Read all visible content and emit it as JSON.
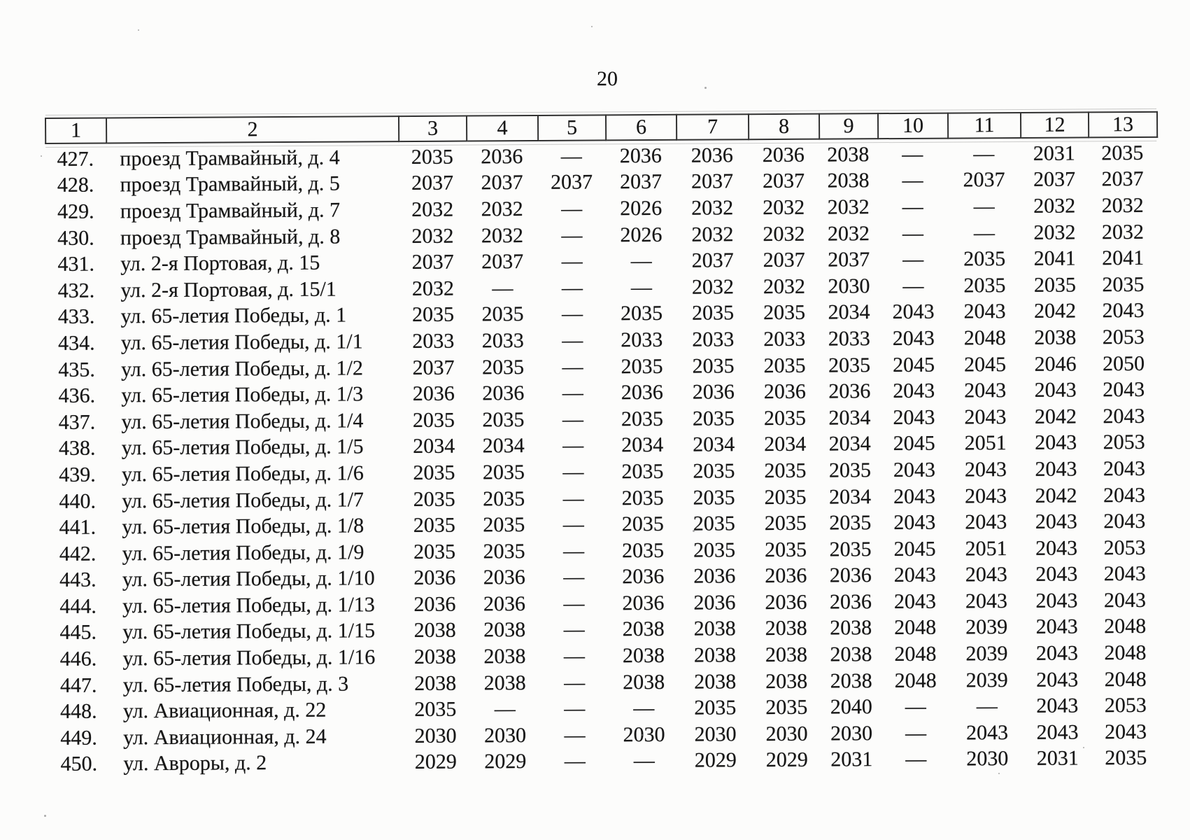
{
  "page": {
    "number": "20"
  },
  "table": {
    "dash": "—",
    "headers": [
      "1",
      "2",
      "3",
      "4",
      "5",
      "6",
      "7",
      "8",
      "9",
      "10",
      "11",
      "12",
      "13"
    ],
    "rows": [
      {
        "num": "427.",
        "address": "проезд Трамвайный, д. 4",
        "values": [
          "2035",
          "2036",
          "—",
          "2036",
          "2036",
          "2036",
          "2038",
          "—",
          "—",
          "2031",
          "2035"
        ]
      },
      {
        "num": "428.",
        "address": "проезд Трамвайный, д. 5",
        "values": [
          "2037",
          "2037",
          "2037",
          "2037",
          "2037",
          "2037",
          "2038",
          "—",
          "2037",
          "2037",
          "2037"
        ]
      },
      {
        "num": "429.",
        "address": "проезд Трамвайный, д. 7",
        "values": [
          "2032",
          "2032",
          "—",
          "2026",
          "2032",
          "2032",
          "2032",
          "—",
          "—",
          "2032",
          "2032"
        ]
      },
      {
        "num": "430.",
        "address": "проезд Трамвайный, д. 8",
        "values": [
          "2032",
          "2032",
          "—",
          "2026",
          "2032",
          "2032",
          "2032",
          "—",
          "—",
          "2032",
          "2032"
        ]
      },
      {
        "num": "431.",
        "address": "ул. 2-я Портовая, д. 15",
        "values": [
          "2037",
          "2037",
          "—",
          "—",
          "2037",
          "2037",
          "2037",
          "—",
          "2035",
          "2041",
          "2041"
        ]
      },
      {
        "num": "432.",
        "address": "ул. 2-я Портовая, д. 15/1",
        "values": [
          "2032",
          "—",
          "—",
          "—",
          "2032",
          "2032",
          "2030",
          "—",
          "2035",
          "2035",
          "2035"
        ]
      },
      {
        "num": "433.",
        "address": "ул. 65-летия Победы, д. 1",
        "values": [
          "2035",
          "2035",
          "—",
          "2035",
          "2035",
          "2035",
          "2034",
          "2043",
          "2043",
          "2042",
          "2043"
        ]
      },
      {
        "num": "434.",
        "address": "ул. 65-летия Победы, д. 1/1",
        "values": [
          "2033",
          "2033",
          "—",
          "2033",
          "2033",
          "2033",
          "2033",
          "2043",
          "2048",
          "2038",
          "2053"
        ]
      },
      {
        "num": "435.",
        "address": "ул. 65-летия Победы, д. 1/2",
        "values": [
          "2037",
          "2035",
          "—",
          "2035",
          "2035",
          "2035",
          "2035",
          "2045",
          "2045",
          "2046",
          "2050"
        ]
      },
      {
        "num": "436.",
        "address": "ул. 65-летия Победы, д. 1/3",
        "values": [
          "2036",
          "2036",
          "—",
          "2036",
          "2036",
          "2036",
          "2036",
          "2043",
          "2043",
          "2043",
          "2043"
        ]
      },
      {
        "num": "437.",
        "address": "ул. 65-летия Победы, д. 1/4",
        "values": [
          "2035",
          "2035",
          "—",
          "2035",
          "2035",
          "2035",
          "2034",
          "2043",
          "2043",
          "2042",
          "2043"
        ]
      },
      {
        "num": "438.",
        "address": "ул. 65-летия Победы, д. 1/5",
        "values": [
          "2034",
          "2034",
          "—",
          "2034",
          "2034",
          "2034",
          "2034",
          "2045",
          "2051",
          "2043",
          "2053"
        ]
      },
      {
        "num": "439.",
        "address": "ул. 65-летия Победы, д. 1/6",
        "values": [
          "2035",
          "2035",
          "—",
          "2035",
          "2035",
          "2035",
          "2035",
          "2043",
          "2043",
          "2043",
          "2043"
        ]
      },
      {
        "num": "440.",
        "address": "ул. 65-летия Победы, д. 1/7",
        "values": [
          "2035",
          "2035",
          "—",
          "2035",
          "2035",
          "2035",
          "2034",
          "2043",
          "2043",
          "2042",
          "2043"
        ]
      },
      {
        "num": "441.",
        "address": "ул. 65-летия Победы, д. 1/8",
        "values": [
          "2035",
          "2035",
          "—",
          "2035",
          "2035",
          "2035",
          "2035",
          "2043",
          "2043",
          "2043",
          "2043"
        ]
      },
      {
        "num": "442.",
        "address": "ул. 65-летия Победы, д. 1/9",
        "values": [
          "2035",
          "2035",
          "—",
          "2035",
          "2035",
          "2035",
          "2035",
          "2045",
          "2051",
          "2043",
          "2053"
        ]
      },
      {
        "num": "443.",
        "address": "ул. 65-летия Победы, д. 1/10",
        "values": [
          "2036",
          "2036",
          "—",
          "2036",
          "2036",
          "2036",
          "2036",
          "2043",
          "2043",
          "2043",
          "2043"
        ]
      },
      {
        "num": "444.",
        "address": "ул. 65-летия Победы, д. 1/13",
        "values": [
          "2036",
          "2036",
          "—",
          "2036",
          "2036",
          "2036",
          "2036",
          "2043",
          "2043",
          "2043",
          "2043"
        ]
      },
      {
        "num": "445.",
        "address": "ул. 65-летия Победы, д. 1/15",
        "values": [
          "2038",
          "2038",
          "—",
          "2038",
          "2038",
          "2038",
          "2038",
          "2048",
          "2039",
          "2043",
          "2048"
        ]
      },
      {
        "num": "446.",
        "address": "ул. 65-летия Победы, д. 1/16",
        "values": [
          "2038",
          "2038",
          "—",
          "2038",
          "2038",
          "2038",
          "2038",
          "2048",
          "2039",
          "2043",
          "2048"
        ]
      },
      {
        "num": "447.",
        "address": "ул. 65-летия Победы, д. 3",
        "values": [
          "2038",
          "2038",
          "—",
          "2038",
          "2038",
          "2038",
          "2038",
          "2048",
          "2039",
          "2043",
          "2048"
        ]
      },
      {
        "num": "448.",
        "address": "ул. Авиационная, д. 22",
        "values": [
          "2035",
          "—",
          "—",
          "—",
          "2035",
          "2035",
          "2040",
          "—",
          "—",
          "2043",
          "2053"
        ]
      },
      {
        "num": "449.",
        "address": "ул. Авиационная, д. 24",
        "values": [
          "2030",
          "2030",
          "—",
          "2030",
          "2030",
          "2030",
          "2030",
          "—",
          "2043",
          "2043",
          "2043"
        ]
      },
      {
        "num": "450.",
        "address": "ул. Авроры, д. 2",
        "values": [
          "2029",
          "2029",
          "—",
          "—",
          "2029",
          "2029",
          "2031",
          "—",
          "2030",
          "2031",
          "2035"
        ]
      }
    ]
  }
}
